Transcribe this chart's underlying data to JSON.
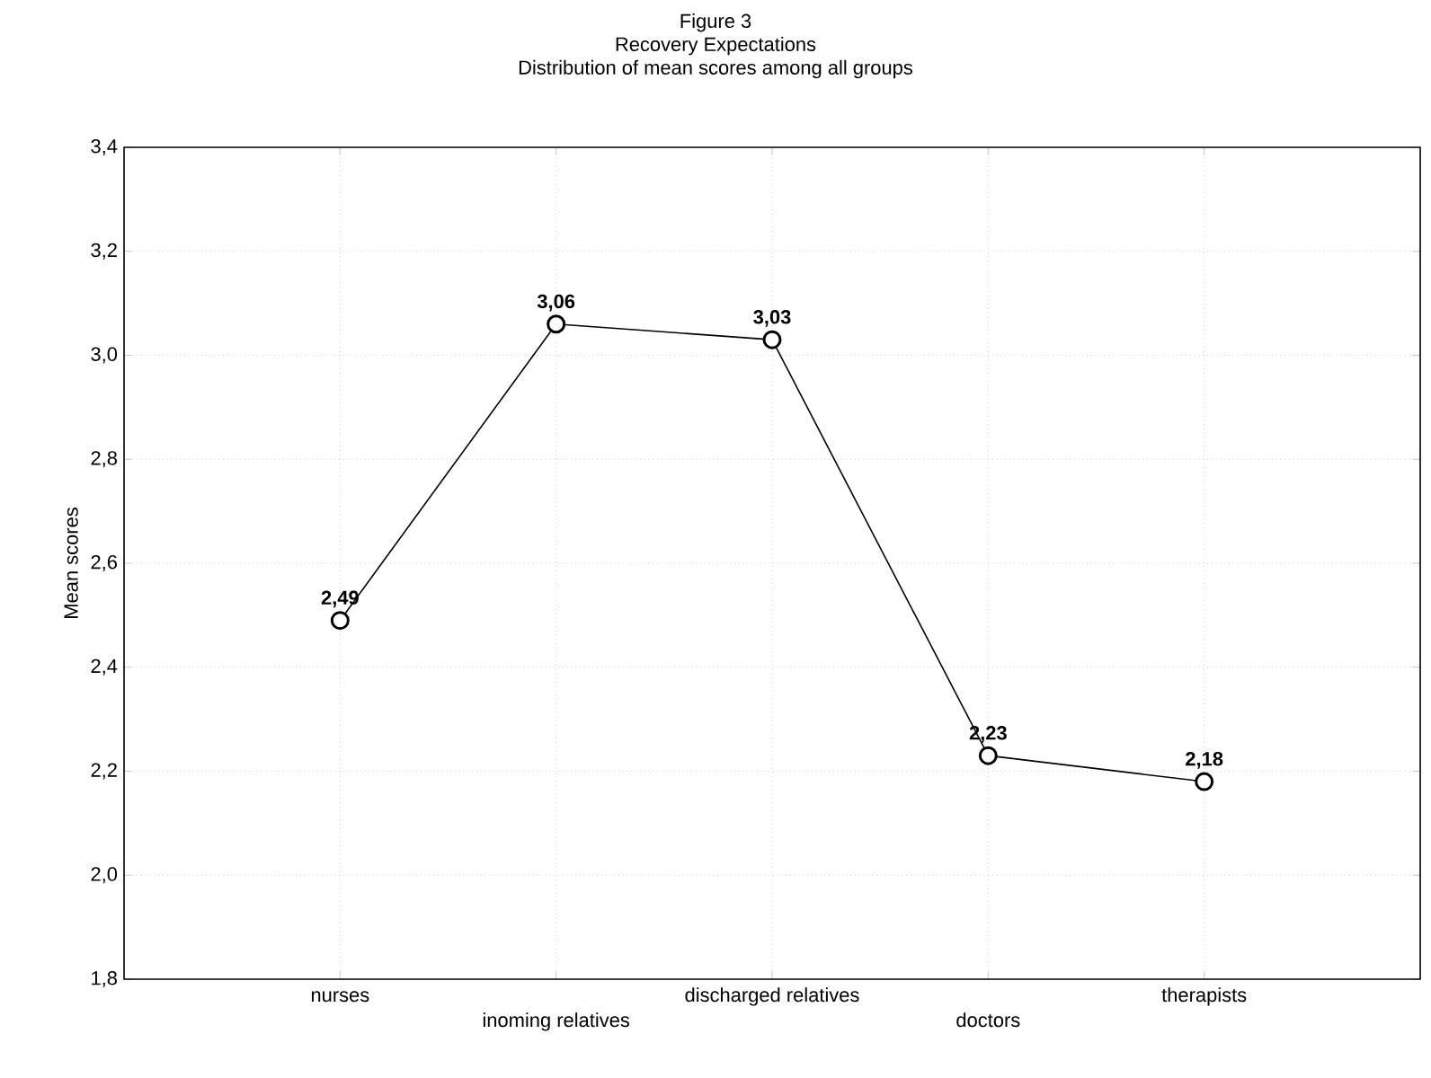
{
  "chart_data": {
    "type": "line",
    "title": "Figure 3",
    "subtitle": "Recovery Expectations",
    "annotations": [
      "Distribution of mean scores among all groups"
    ],
    "ylabel": "Mean scores",
    "categories": [
      "nurses",
      "inoming relatives",
      "discharged relatives",
      "doctors",
      "therapists"
    ],
    "values": [
      2.49,
      3.06,
      3.03,
      2.23,
      2.18
    ],
    "value_labels": [
      "2,49",
      "3,06",
      "3,03",
      "2,23",
      "2,18"
    ],
    "color": "#000000",
    "ylim": [
      1.8,
      3.4
    ],
    "yticks": [
      {
        "value": 1.8,
        "label": "1,8"
      },
      {
        "value": 2.0,
        "label": "2,0"
      },
      {
        "value": 2.2,
        "label": "2,2"
      },
      {
        "value": 2.4,
        "label": "2,4"
      },
      {
        "value": 2.6,
        "label": "2,6"
      },
      {
        "value": 2.8,
        "label": "2,8"
      },
      {
        "value": 3.0,
        "label": "3,0"
      },
      {
        "value": 3.2,
        "label": "3,2"
      },
      {
        "value": 3.4,
        "label": "3,4"
      }
    ],
    "grid": true,
    "marker": "circle",
    "line_style": "solid"
  }
}
